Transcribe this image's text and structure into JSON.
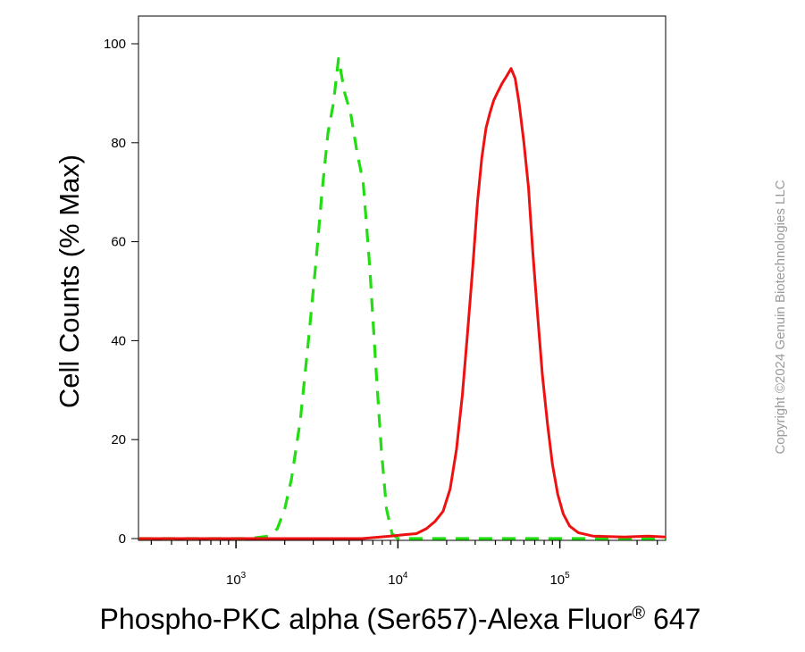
{
  "chart_data": {
    "type": "line",
    "xlabel": "Phospho-PKC alpha (Ser657)-Alexa Fluor",
    "xlabel_sup": "®",
    "xlabel_suffix": " 647",
    "ylabel": "Cell Counts (% Max)",
    "x_scale": "log",
    "xlim": [
      250,
      450000
    ],
    "ylim": [
      0,
      105
    ],
    "y_ticks": [
      0,
      20,
      40,
      60,
      80,
      100
    ],
    "y_tick_labels": [
      "0",
      "20",
      "40",
      "60",
      "80",
      "100"
    ],
    "x_ticks": [
      {
        "base": "10",
        "exp": "3",
        "value": 1000
      },
      {
        "base": "10",
        "exp": "4",
        "value": 10000
      },
      {
        "base": "10",
        "exp": "5",
        "value": 100000
      }
    ],
    "grid": false,
    "legend": "none",
    "watermark": "Copyright ©2024 Genuin Biotechnologies LLC",
    "series": [
      {
        "style": "dashed",
        "color": "#22dd11",
        "points": [
          [
            250,
            0
          ],
          [
            1200,
            0
          ],
          [
            1600,
            0.5
          ],
          [
            1800,
            2
          ],
          [
            2000,
            6
          ],
          [
            2200,
            12
          ],
          [
            2500,
            24
          ],
          [
            2800,
            40
          ],
          [
            3100,
            55
          ],
          [
            3400,
            70
          ],
          [
            3700,
            82
          ],
          [
            4000,
            88
          ],
          [
            4300,
            97
          ],
          [
            4700,
            90
          ],
          [
            5100,
            86
          ],
          [
            5600,
            78
          ],
          [
            6100,
            72
          ],
          [
            6700,
            55
          ],
          [
            7300,
            35
          ],
          [
            7900,
            18
          ],
          [
            8500,
            6
          ],
          [
            9200,
            1
          ],
          [
            10000,
            0
          ],
          [
            450000,
            0
          ]
        ]
      },
      {
        "style": "solid",
        "color": "#ee1111",
        "points": [
          [
            250,
            0
          ],
          [
            6000,
            0
          ],
          [
            9000,
            0.5
          ],
          [
            11000,
            0.8
          ],
          [
            13000,
            1
          ],
          [
            15000,
            2
          ],
          [
            17000,
            3.5
          ],
          [
            19000,
            5.5
          ],
          [
            21000,
            10
          ],
          [
            23000,
            18
          ],
          [
            25000,
            29
          ],
          [
            27000,
            42
          ],
          [
            29000,
            55
          ],
          [
            31000,
            68
          ],
          [
            33000,
            77
          ],
          [
            35000,
            83
          ],
          [
            37000,
            86
          ],
          [
            39000,
            88.5
          ],
          [
            41000,
            90
          ],
          [
            44000,
            92
          ],
          [
            47000,
            93.5
          ],
          [
            50000,
            95
          ],
          [
            53000,
            93
          ],
          [
            56000,
            88
          ],
          [
            60000,
            80
          ],
          [
            64000,
            71
          ],
          [
            68000,
            58
          ],
          [
            73000,
            45
          ],
          [
            78000,
            33
          ],
          [
            84000,
            23
          ],
          [
            90000,
            15
          ],
          [
            97000,
            9
          ],
          [
            105000,
            5
          ],
          [
            115000,
            2.5
          ],
          [
            130000,
            1.2
          ],
          [
            160000,
            0.5
          ],
          [
            250000,
            0.3
          ],
          [
            350000,
            0.5
          ],
          [
            450000,
            0.3
          ]
        ]
      }
    ]
  }
}
